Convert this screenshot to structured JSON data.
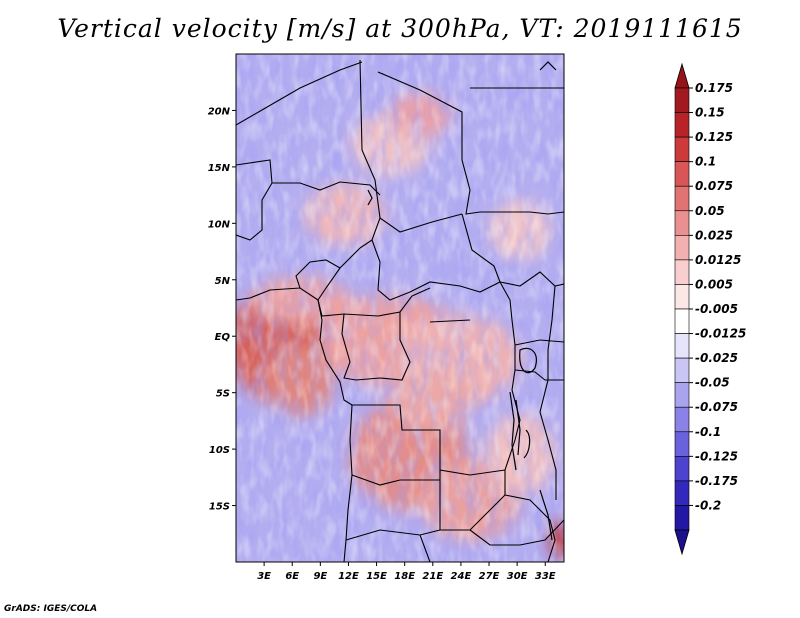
{
  "title": "Vertical velocity [m/s] at 300hPa, VT: 2019111615",
  "credit": "GrADS: IGES/COLA",
  "map": {
    "lon_range": [
      0,
      35
    ],
    "lat_range": [
      -20,
      25
    ],
    "lat_ticks": [
      {
        "value": 20,
        "label": "20N"
      },
      {
        "value": 15,
        "label": "15N"
      },
      {
        "value": 10,
        "label": "10N"
      },
      {
        "value": 5,
        "label": "5N"
      },
      {
        "value": 0,
        "label": "EQ"
      },
      {
        "value": -5,
        "label": "5S"
      },
      {
        "value": -10,
        "label": "10S"
      },
      {
        "value": -15,
        "label": "15S"
      }
    ],
    "lon_ticks": [
      {
        "value": 3,
        "label": "3E"
      },
      {
        "value": 6,
        "label": "6E"
      },
      {
        "value": 9,
        "label": "9E"
      },
      {
        "value": 12,
        "label": "12E"
      },
      {
        "value": 15,
        "label": "15E"
      },
      {
        "value": 18,
        "label": "18E"
      },
      {
        "value": 21,
        "label": "21E"
      },
      {
        "value": 24,
        "label": "24E"
      },
      {
        "value": 27,
        "label": "27E"
      },
      {
        "value": 30,
        "label": "30E"
      },
      {
        "value": 33,
        "label": "33E"
      }
    ]
  },
  "colorbar": {
    "levels": [
      {
        "label": "0.175",
        "color": "#a11a1f"
      },
      {
        "label": "0.15",
        "color": "#b82328"
      },
      {
        "label": "0.125",
        "color": "#cc3a3c"
      },
      {
        "label": "0.1",
        "color": "#d95656"
      },
      {
        "label": "0.075",
        "color": "#e27373"
      },
      {
        "label": "0.05",
        "color": "#eb9090"
      },
      {
        "label": "0.025",
        "color": "#f2b0b0"
      },
      {
        "label": "0.0125",
        "color": "#f8cece"
      },
      {
        "label": "0.005",
        "color": "#fce7e7"
      },
      {
        "label": "-0.005",
        "color": "#ffffff"
      },
      {
        "label": "-0.0125",
        "color": "#e6e4fb"
      },
      {
        "label": "-0.025",
        "color": "#c9c5f5"
      },
      {
        "label": "-0.05",
        "color": "#aaa4ee"
      },
      {
        "label": "-0.075",
        "color": "#8a82e6"
      },
      {
        "label": "-0.1",
        "color": "#6a61dc"
      },
      {
        "label": "-0.125",
        "color": "#4d43cf"
      },
      {
        "label": "-0.175",
        "color": "#3228bb"
      },
      {
        "label": "-0.2",
        "color": "#2218a3"
      }
    ],
    "top_arrow_color": "#961318",
    "bottom_arrow_color": "#1c108c"
  }
}
